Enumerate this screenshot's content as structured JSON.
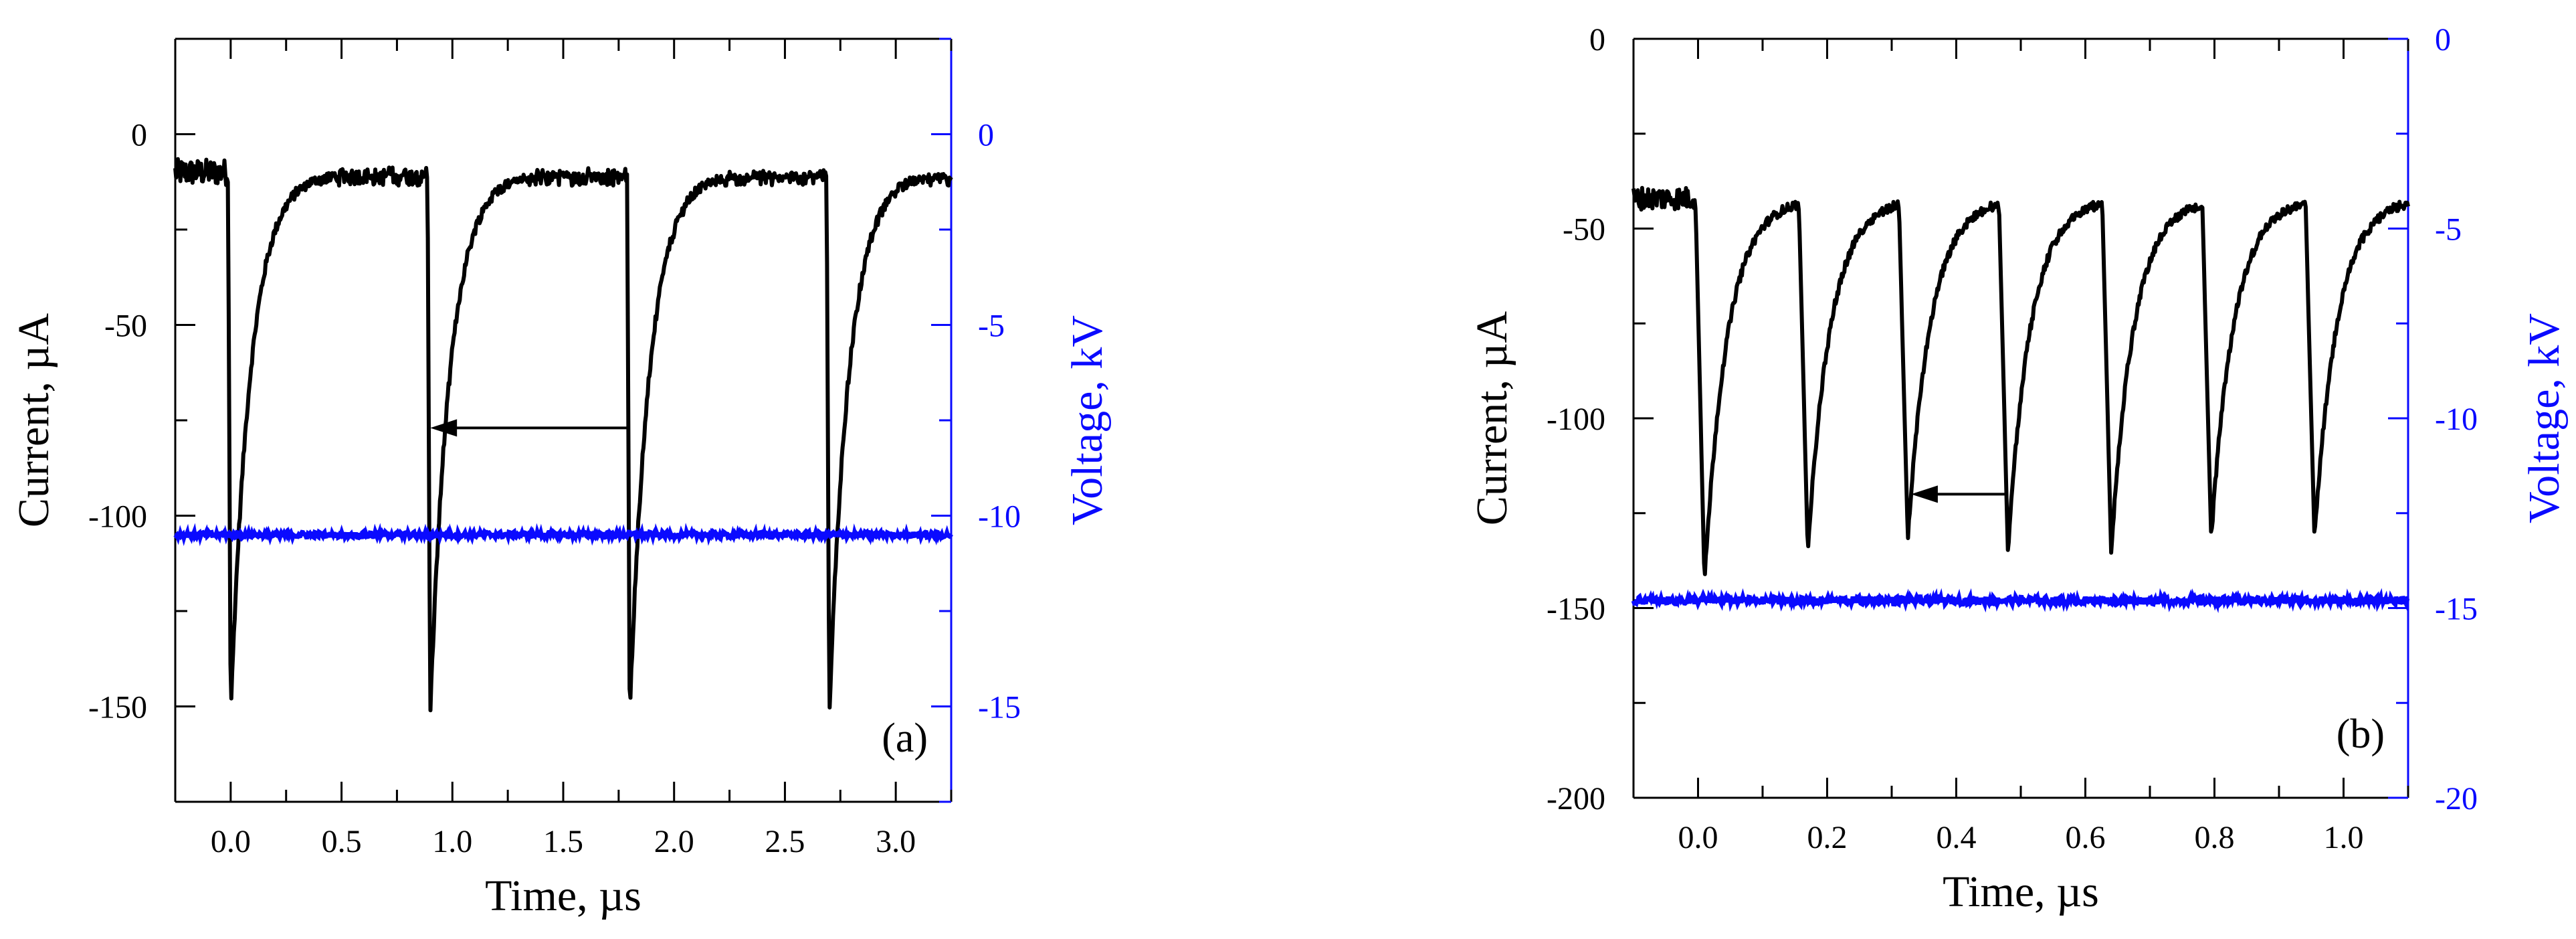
{
  "chart_data": [
    {
      "id": "a",
      "type": "line",
      "panel_label": "(a)",
      "xlabel": "Time, µs",
      "ylabel": "Current, µA",
      "y2label": "Voltage, kV",
      "xlim": [
        -0.25,
        3.25
      ],
      "ylim": [
        -175,
        25
      ],
      "y2lim": [
        -17.5,
        2.5
      ],
      "xticks": [
        0.0,
        0.5,
        1.0,
        1.5,
        2.0,
        2.5,
        3.0
      ],
      "xtick_labels": [
        "0.0",
        "0.5",
        "1.0",
        "1.5",
        "2.0",
        "2.5",
        "3.0"
      ],
      "yticks": [
        0,
        -50,
        -100,
        -150
      ],
      "ytick_labels": [
        "0",
        "-50",
        "-100",
        "-150"
      ],
      "y2ticks": [
        0,
        -5,
        -10,
        -15
      ],
      "y2tick_labels": [
        "0",
        "-5",
        "-10",
        "-15"
      ],
      "series": [
        {
          "name": "Current",
          "axis": "left",
          "color": "#000000",
          "baseline": -10,
          "noise": 7,
          "pulses": [
            {
              "t": 0.0,
              "peak": -152,
              "width": 0.012,
              "tau": 0.09
            },
            {
              "t": 0.9,
              "peak": -152,
              "width": 0.012,
              "tau": 0.09
            },
            {
              "t": 1.8,
              "peak": -152,
              "width": 0.012,
              "tau": 0.09
            },
            {
              "t": 2.7,
              "peak": -152,
              "width": 0.012,
              "tau": 0.09
            }
          ]
        },
        {
          "name": "Voltage",
          "axis": "right",
          "color": "#0a0aff",
          "level": -10.5,
          "noise": 0.15
        }
      ],
      "annotation": {
        "type": "arrow",
        "direction": "left",
        "from": [
          1.8,
          -77
        ],
        "to": [
          0.9,
          -77
        ]
      }
    },
    {
      "id": "b",
      "type": "line",
      "panel_label": "(b)",
      "xlabel": "Time, µs",
      "ylabel": "Current, µA",
      "y2label": "Voltage, kV",
      "xlim": [
        -0.1,
        1.1
      ],
      "ylim": [
        -200,
        0
      ],
      "y2lim": [
        -20,
        0
      ],
      "xticks": [
        0.0,
        0.2,
        0.4,
        0.6,
        0.8,
        1.0
      ],
      "xtick_labels": [
        "0.0",
        "0.2",
        "0.4",
        "0.6",
        "0.8",
        "1.0"
      ],
      "yticks": [
        0,
        -50,
        -100,
        -150,
        -200
      ],
      "ytick_labels": [
        "0",
        "-50",
        "-100",
        "-150",
        "-200"
      ],
      "y2ticks": [
        0,
        -5,
        -10,
        -15,
        -20
      ],
      "y2tick_labels": [
        "0",
        "-5",
        "-10",
        "-15",
        "-20"
      ],
      "series": [
        {
          "name": "Current",
          "axis": "left",
          "color": "#000000",
          "baseline": -42,
          "noise": 6,
          "pulses": [
            {
              "t": 0.01,
              "peak": -143,
              "width": 0.014,
              "tau": 0.035
            },
            {
              "t": 0.17,
              "peak": -135,
              "width": 0.014,
              "tau": 0.035
            },
            {
              "t": 0.325,
              "peak": -132,
              "width": 0.014,
              "tau": 0.035
            },
            {
              "t": 0.48,
              "peak": -135,
              "width": 0.014,
              "tau": 0.035
            },
            {
              "t": 0.64,
              "peak": -135,
              "width": 0.014,
              "tau": 0.035
            },
            {
              "t": 0.795,
              "peak": -132,
              "width": 0.014,
              "tau": 0.035
            },
            {
              "t": 0.955,
              "peak": -132,
              "width": 0.014,
              "tau": 0.035
            }
          ]
        },
        {
          "name": "Voltage",
          "axis": "right",
          "color": "#0a0aff",
          "level": -14.8,
          "noise": 0.2
        }
      ],
      "annotation": {
        "type": "arrow",
        "direction": "left",
        "from": [
          0.48,
          -120
        ],
        "to": [
          0.33,
          -120
        ]
      }
    }
  ]
}
